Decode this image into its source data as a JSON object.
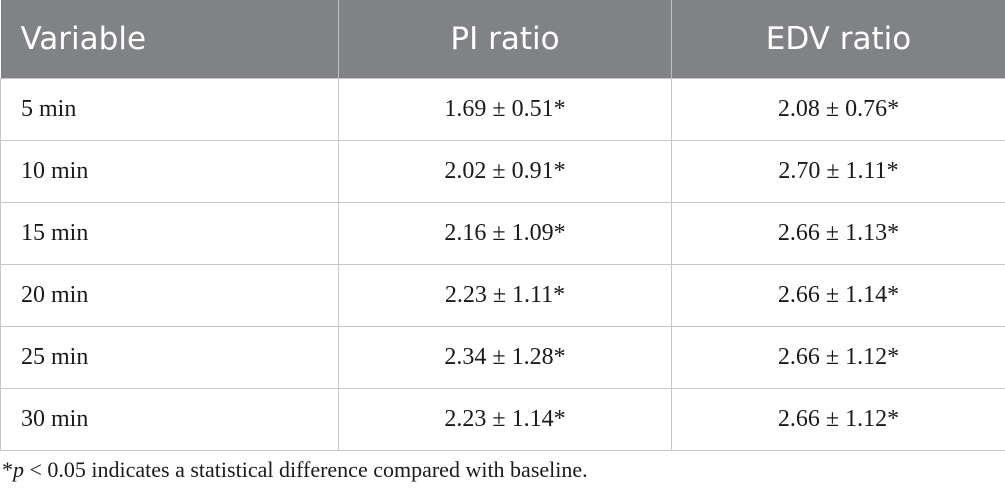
{
  "table": {
    "columns": [
      "Variable",
      "PI ratio",
      "EDV ratio"
    ],
    "rows": [
      [
        "5 min",
        "1.69 ± 0.51*",
        "2.08 ± 0.76*"
      ],
      [
        "10 min",
        "2.02 ± 0.91*",
        "2.70 ± 1.11*"
      ],
      [
        "15 min",
        "2.16 ± 1.09*",
        "2.66 ± 1.13*"
      ],
      [
        "20 min",
        "2.23 ± 1.11*",
        "2.66 ± 1.14*"
      ],
      [
        "25 min",
        "2.34 ± 1.28*",
        "2.66 ± 1.12*"
      ],
      [
        "30 min",
        "2.23 ± 1.14*",
        "2.66 ± 1.12*"
      ]
    ]
  },
  "footnote": {
    "prefix": "*",
    "variable": "p",
    "text": " < 0.05 indicates a statistical difference compared with baseline."
  },
  "colors": {
    "header_bg": "#818285",
    "header_text": "#ffffff",
    "border": "#c7c7c7"
  }
}
